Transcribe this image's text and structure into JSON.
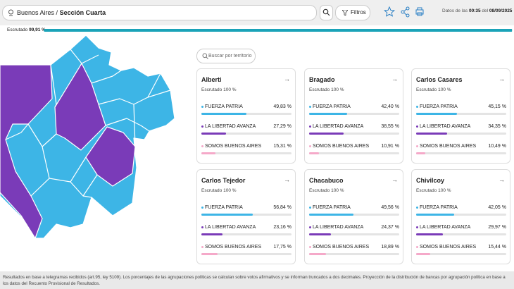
{
  "header": {
    "location_prefix": "Buenos Aires /",
    "location": "Sección Cuarta",
    "filters": "Filtros",
    "date_prefix": "Datos de las",
    "time": "00:35",
    "date_mid": "del",
    "date": "08/09/2025"
  },
  "scrutiny": {
    "label": "Escrutado",
    "percent": 99.91,
    "percent_label": "99,91 %"
  },
  "search_placeholder": "Buscar por territorio",
  "parties": [
    {
      "name": "FUERZA PATRIA",
      "color": "#3db5e6"
    },
    {
      "name": "LA LIBERTAD AVANZA",
      "color": "#7a3bb8"
    },
    {
      "name": "SOMOS BUENOS AIRES",
      "color": "#f5a9c9"
    }
  ],
  "cards": [
    {
      "name": "Alberti",
      "scrutiny_label": "Escrutado",
      "scrutiny": "100 %",
      "results": [
        {
          "value": 49.83,
          "label": "49,83 %"
        },
        {
          "value": 27.29,
          "label": "27,29 %"
        },
        {
          "value": 15.31,
          "label": "15,31 %"
        }
      ]
    },
    {
      "name": "Bragado",
      "scrutiny_label": "Escrutado",
      "scrutiny": "100 %",
      "results": [
        {
          "value": 42.4,
          "label": "42,40 %"
        },
        {
          "value": 38.55,
          "label": "38,55 %"
        },
        {
          "value": 10.91,
          "label": "10,91 %"
        }
      ]
    },
    {
      "name": "Carlos Casares",
      "scrutiny_label": "Escrutado",
      "scrutiny": "100 %",
      "results": [
        {
          "value": 45.15,
          "label": "45,15 %"
        },
        {
          "value": 34.35,
          "label": "34,35 %"
        },
        {
          "value": 10.49,
          "label": "10,49 %"
        }
      ]
    },
    {
      "name": "Carlos Tejedor",
      "scrutiny_label": "Escrutado",
      "scrutiny": "100 %",
      "results": [
        {
          "value": 56.84,
          "label": "56,84 %"
        },
        {
          "value": 23.16,
          "label": "23,16 %"
        },
        {
          "value": 17.75,
          "label": "17,75 %"
        }
      ]
    },
    {
      "name": "Chacabuco",
      "scrutiny_label": "Escrutado",
      "scrutiny": "100 %",
      "results": [
        {
          "value": 49.56,
          "label": "49,56 %"
        },
        {
          "value": 24.37,
          "label": "24,37 %"
        },
        {
          "value": 18.89,
          "label": "18,89 %"
        }
      ]
    },
    {
      "name": "Chivilcoy",
      "scrutiny_label": "Escrutado",
      "scrutiny": "100 %",
      "results": [
        {
          "value": 42.05,
          "label": "42,05 %"
        },
        {
          "value": 29.97,
          "label": "29,97 %"
        },
        {
          "value": 15.44,
          "label": "15,44 %"
        }
      ]
    }
  ],
  "footer": "Resultados en base a telegramas recibidos (art.95, ley 5109). Los porcentajes de las agrupaciones políticas se calculan sobre votos afirmativos y se informan truncados a dos decimales. Proyección de la distribución de bancas por agrupación política en base a los datos del Recuento Provisional de Resultados."
}
